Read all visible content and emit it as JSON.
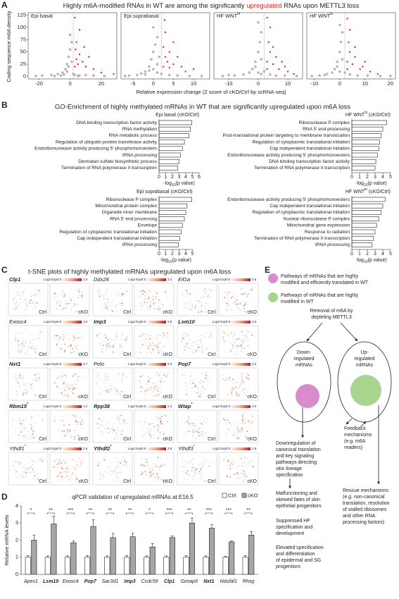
{
  "figure_labels": [
    "A",
    "B",
    "C",
    "D",
    "E"
  ],
  "panel_a": {
    "title_parts": [
      "Highly m6A-modified RNAs in WT are among the significantly ",
      "upregulated",
      " RNAs upon METTL3 loss"
    ],
    "ylabel": "Coding sequence m6A density",
    "xlabel": "Relative expression change (Z score of cKO/Ctrl by scRNA-seq)"
  },
  "panel_b": {
    "title": "GO-Enrichment of highly methylated mRNAs in WT that are significantly upregulated upon m6A loss"
  },
  "panel_c": {
    "title": "t-SNE plots of highly methylated mRNAs upregulated upon m6A loss",
    "colorbar_label": "Log2 Exp",
    "colorbar_min": {
      "value": 0,
      "label": "0.0"
    },
    "conditions": [
      "Ctrl",
      "cKO"
    ],
    "genes": [
      {
        "name": "Clp1",
        "color": "#c0272d",
        "max": 2.5
      },
      {
        "name": "Ddx28",
        "color": "#231f20",
        "max": 2.3
      },
      {
        "name": "Eif1a",
        "color": "#231f20",
        "max": 3.6
      },
      {
        "name": "Exosc4",
        "color": "#231f20",
        "max": {
          "value": 3,
          "label": "3.0"
        }
      },
      {
        "name": "Imp3",
        "color": "#e8891c",
        "max": 3.8
      },
      {
        "name": "Lsm10",
        "color": "#1ea85a",
        "max": {
          "value": 3,
          "label": "3.0"
        }
      },
      {
        "name": "Nxt1",
        "color": "#29a9e0",
        "max": 4.7
      },
      {
        "name": "Pelo",
        "color": "#231f20",
        "max": {
          "value": 3,
          "label": "3.0"
        }
      },
      {
        "name": "Pop7",
        "color": "#c0272d",
        "max": 3.2
      },
      {
        "name": "Rbm15",
        "superscript": "*",
        "color": "#e15aa8",
        "max": 3.2
      },
      {
        "name": "Rpp38",
        "color": "#c0272d",
        "max": 2.3
      },
      {
        "name": "Wtap",
        "superscript": "*",
        "color": "#e15aa8",
        "max": {
          "value": 4,
          "label": "4.0"
        }
      },
      {
        "name": "Ythdf1",
        "superscript": "*",
        "color": "#231f20",
        "max": 2.6
      },
      {
        "name": "Ythdf2",
        "superscript": "*",
        "color": "#2e3192",
        "max": 3.8
      },
      {
        "name": "Ythdf3",
        "superscript": "*",
        "color": "#231f20",
        "max": 2.6
      }
    ]
  },
  "chart_data": [
    {
      "type": "scatter",
      "title": "Epi basal",
      "xlim": [
        -27,
        30
      ],
      "xticks": [
        -20,
        0,
        20
      ],
      "ylim": [
        -5,
        130
      ],
      "yticks": [
        0,
        25,
        50,
        75,
        100,
        125
      ],
      "threshold": 2,
      "series": [
        {
          "color": "#b5b5b5",
          "x": [
            -18,
            -12,
            -8,
            -5,
            -3,
            -2,
            -1,
            0,
            1,
            -1,
            -4,
            -6,
            3,
            6,
            10,
            15,
            22,
            -22,
            0,
            1,
            -2,
            2,
            5,
            -10
          ],
          "values": [
            2,
            3,
            5,
            8,
            15,
            25,
            40,
            55,
            70,
            20,
            4,
            2,
            3,
            2,
            3,
            2,
            1,
            1,
            85,
            30,
            10,
            5,
            1,
            1
          ]
        },
        {
          "color": "#e8251f",
          "x": [
            3,
            4,
            3.5,
            5,
            6,
            8,
            10,
            12,
            4,
            3,
            6,
            15,
            20,
            28,
            9
          ],
          "values": [
            20,
            35,
            55,
            25,
            45,
            30,
            20,
            40,
            70,
            120,
            95,
            15,
            8,
            5,
            60
          ]
        }
      ]
    },
    {
      "type": "scatter",
      "title": "Epi suprabasal",
      "xlim": [
        -8,
        14
      ],
      "xticks": [
        -5,
        0,
        5,
        10
      ],
      "ylim": [
        -5,
        130
      ],
      "threshold": 2,
      "series": [
        {
          "color": "#b5b5b5",
          "x": [
            -6,
            -4,
            -3,
            -2,
            -1,
            -0.5,
            0,
            0.5,
            1,
            0,
            -1,
            1,
            1.5,
            -2,
            2,
            4,
            6,
            9,
            12,
            -7,
            0,
            1
          ],
          "values": [
            2,
            3,
            6,
            10,
            20,
            35,
            50,
            65,
            80,
            100,
            12,
            25,
            40,
            4,
            5,
            3,
            2,
            1,
            1,
            1,
            15,
            8
          ]
        },
        {
          "color": "#e8251f",
          "x": [
            2.5,
            3,
            2.5,
            3.5,
            4,
            5,
            6,
            7,
            3,
            2.8,
            8,
            10,
            5,
            4
          ],
          "values": [
            20,
            40,
            60,
            30,
            50,
            25,
            40,
            20,
            90,
            115,
            10,
            15,
            70,
            18
          ]
        }
      ]
    },
    {
      "type": "scatter",
      "title": "HF WNT",
      "title_sup": "hi",
      "xlim": [
        -15,
        15
      ],
      "xticks": [
        -10,
        0,
        10
      ],
      "ylim": [
        -5,
        130
      ],
      "threshold": 2,
      "series": [
        {
          "color": "#b5b5b5",
          "x": [
            -12,
            -8,
            -5,
            -3,
            -2,
            -1,
            0,
            0.5,
            1,
            0,
            -1,
            1,
            2,
            4,
            6,
            9,
            13,
            -10,
            0,
            1
          ],
          "values": [
            1,
            2,
            4,
            8,
            15,
            30,
            50,
            70,
            90,
            110,
            20,
            35,
            10,
            4,
            2,
            2,
            1,
            3,
            8,
            5
          ]
        },
        {
          "color": "#e8251f",
          "x": [
            3,
            3,
            4,
            3.5,
            5,
            6,
            7,
            8,
            10,
            12,
            4,
            3,
            5,
            9
          ],
          "values": [
            15,
            30,
            50,
            70,
            25,
            40,
            15,
            30,
            10,
            5,
            100,
            120,
            60,
            20
          ]
        }
      ]
    },
    {
      "type": "scatter",
      "title": "HF WNT",
      "title_sup": "lo",
      "xlim": [
        -13,
        22
      ],
      "xticks": [
        -10,
        0,
        10,
        20
      ],
      "ylim": [
        -5,
        130
      ],
      "threshold": 2,
      "series": [
        {
          "color": "#b5b5b5",
          "x": [
            -11,
            -8,
            -5,
            -3,
            -2,
            -1,
            0,
            0.5,
            1,
            0,
            -1,
            1,
            2,
            4,
            7,
            11,
            16,
            20,
            0,
            -6
          ],
          "values": [
            1,
            2,
            5,
            8,
            15,
            30,
            50,
            70,
            90,
            105,
            20,
            35,
            8,
            4,
            2,
            2,
            1,
            1,
            10,
            3
          ]
        },
        {
          "color": "#e8251f",
          "x": [
            3,
            3,
            4,
            3.5,
            5,
            6,
            8,
            10,
            12,
            15,
            4,
            3,
            6,
            9
          ],
          "values": [
            15,
            30,
            50,
            70,
            25,
            40,
            15,
            30,
            10,
            5,
            95,
            118,
            60,
            20
          ]
        }
      ]
    },
    {
      "type": "hbar",
      "title": "Epi basal",
      "title_suffix": " (cKO/Ctrl)",
      "color": "#ffffff",
      "categories": [
        "DNA binding transcription factor activity",
        "RNA methylation",
        "RNA metabolic process",
        "Regulation of ubiquitin protein transferase activity",
        "Endoribonuclease activity producing 5' phosphomonoesters",
        "tRNA processing",
        "Dermatan sulfate biosynthetic process",
        "Termination of RNA polymerase II transcription"
      ],
      "category_colors": [
        "#231f20",
        "#e15aa8",
        "#231f20",
        "#e8891c",
        "#c0272d",
        "#c0272d",
        "#231f20",
        "#1ea85a"
      ],
      "values": [
        4.9,
        4.7,
        4.5,
        3.8,
        3.5,
        3.2,
        3.0,
        2.8
      ],
      "xlim": [
        0,
        6
      ],
      "xticks": [
        0,
        1,
        2,
        3,
        4,
        5,
        6
      ],
      "xlabel_parts": [
        "-log",
        "10",
        "(p value)"
      ]
    },
    {
      "type": "hbar",
      "title": "HF WNT",
      "title_sup": "hi",
      "title_suffix": " (cKO/Ctrl)",
      "color": "#ffffff",
      "categories": [
        "Ribonuclease P complex",
        "RNA 5' end processing",
        "Post-translational protein targeting to membrane translocation",
        "Regulation of cytoplasmic translational initiation",
        "Cap independent translational initiation",
        "Endoribonuclease activity producing 5' phosphomonoesters",
        "DNA binding transcription factor activity",
        "Termination of RNA polymerase II transcription"
      ],
      "category_colors": [
        "#c0272d",
        "#c0272d",
        "#231f20",
        "#2e3192",
        "#2e3192",
        "#c0272d",
        "#231f20",
        "#1ea85a"
      ],
      "values": [
        4.5,
        4.0,
        3.8,
        3.6,
        3.5,
        3.3,
        3.1,
        3.0
      ],
      "xlim": [
        0,
        5
      ],
      "xticks": [
        0,
        1,
        2,
        3,
        4,
        5
      ],
      "xlabel_parts": [
        "-log",
        "10",
        "(p value)"
      ]
    },
    {
      "type": "hbar",
      "title": "Epi suprabasal",
      "title_suffix": " (cKO/Ctrl)",
      "color": "#ffffff",
      "categories": [
        "Ribonuclease P complex",
        "Mitochondrial protein complex",
        "Organelle inner membrane",
        "RNA 5' end processing",
        "Envelope",
        "Regulation of cytoplasmic translational initiation",
        "Cap independent translational initiation",
        "tRNA processing"
      ],
      "category_colors": [
        "#c0272d",
        "#231f20",
        "#231f20",
        "#c0272d",
        "#29a9e0",
        "#2e3192",
        "#2e3192",
        "#c0272d"
      ],
      "values": [
        4.9,
        4.2,
        4.0,
        3.8,
        3.5,
        3.3,
        3.1,
        2.9
      ],
      "xlim": [
        0,
        5
      ],
      "xticks": [
        0,
        1,
        2,
        3,
        4,
        5
      ],
      "xlabel_parts": [
        "-log",
        "10",
        "(p value)"
      ]
    },
    {
      "type": "hbar",
      "title": "HF WNT",
      "title_sup": "lo",
      "title_suffix": " (cKO/Ctrl)",
      "color": "#ffffff",
      "categories": [
        "Endoribonuclease activity producing 5' phosphomonoesters",
        "Cap independent translational initiation",
        "Regulation of cytoplasmic translational initiation",
        "Nuclear ribonuclease P complex",
        "Mitochondrial gene expression",
        "Response to radiation",
        "Termination of RNA polymerase II transcription",
        "tRNA processing"
      ],
      "category_colors": [
        "#c0272d",
        "#2e3192",
        "#2e3192",
        "#c0272d",
        "#231f20",
        "#231f20",
        "#1ea85a",
        "#c0272d"
      ],
      "values": [
        4.3,
        4.0,
        3.8,
        3.5,
        3.2,
        3.0,
        2.8,
        2.6
      ],
      "xlim": [
        0,
        5
      ],
      "xticks": [
        0,
        1,
        2,
        3,
        4,
        5
      ],
      "xlabel_parts": [
        "-log",
        "10",
        "(p value)"
      ]
    },
    {
      "type": "grouped_bar",
      "title": "qPCR validation of upregulated mRNAs at E16.5",
      "ylabel": "Relative mRNA levels",
      "categories": [
        "Apex1",
        "Lsm10",
        "Exosc4",
        "Pop7",
        "Sac3d1",
        "Imp3",
        "Ccdc59",
        "Clp1",
        "Gimap9",
        "Nxt1",
        "Ndufaf1",
        "Rhog"
      ],
      "category_colors": [
        "#231f20",
        "#1ea85a",
        "#231f20",
        "#c0272d",
        "#231f20",
        "#e8891c",
        "#231f20",
        "#c0272d",
        "#231f20",
        "#29a9e0",
        "#231f20",
        "#231f20"
      ],
      "ylim": [
        0,
        4
      ],
      "yticks": [
        0,
        1,
        2,
        3,
        4
      ],
      "series": [
        {
          "name": "Ctrl",
          "color": "#ffffff",
          "values": [
            1,
            1,
            1,
            1,
            1,
            1,
            1,
            1,
            1,
            1,
            1,
            1
          ],
          "errors": [
            0.1,
            0.08,
            0.08,
            0.1,
            0.08,
            0.1,
            0.08,
            0.08,
            0.1,
            0.08,
            0.05,
            0.1
          ]
        },
        {
          "name": "cKO",
          "color": "#a6a6a6",
          "values": [
            2.0,
            2.95,
            1.85,
            2.8,
            2.15,
            2.2,
            1.6,
            2.15,
            3.0,
            2.7,
            1.9,
            2.3
          ],
          "errors": [
            0.3,
            0.45,
            0.1,
            0.4,
            0.25,
            0.2,
            0.2,
            0.1,
            0.3,
            0.2,
            0.05,
            0.2
          ]
        }
      ],
      "significance": [
        "*",
        "**",
        "***",
        "**",
        "**",
        "**",
        "*",
        "***",
        "**",
        "***",
        "***",
        "**"
      ]
    }
  ],
  "diagram": {
    "legend": [
      {
        "color": "#d98ccb",
        "lines": [
          "Pathways of mRNAs that are highly",
          "modified and efficiently translated in WT"
        ]
      },
      {
        "color": "#a9d48e",
        "lines": [
          "Pathways of mRNAs that are highly",
          "modified in WT"
        ]
      }
    ],
    "start": [
      "Removal of m6A by",
      "depleting METTL3"
    ],
    "down": [
      "Down-",
      "regulated",
      "mRNAs"
    ],
    "up": [
      "Up-",
      "regulated",
      "mRNAs"
    ],
    "feedback": [
      "Feedback",
      "mechanisms",
      "(e.g. m6A",
      "readers)"
    ],
    "outcomes_left": [
      [
        "Downregulation of",
        "canonical translation",
        "and key signaling",
        "pathways directing",
        "skin lineage",
        "specification"
      ],
      [
        "Malfunctioning and",
        "skewed fates of skin",
        "epithelial progenitors"
      ],
      [
        "Suppressed HF",
        "specification and",
        "development"
      ],
      [
        "Elevated specification",
        "and differentiation",
        "of epidermal and SG",
        "progenitors"
      ]
    ],
    "rescue": [
      "Rescue mechanisms",
      "(e.g. non-canonical",
      "translation, resolution",
      "of stalled ribosomes",
      "and other RNA",
      "processing factors)"
    ]
  }
}
